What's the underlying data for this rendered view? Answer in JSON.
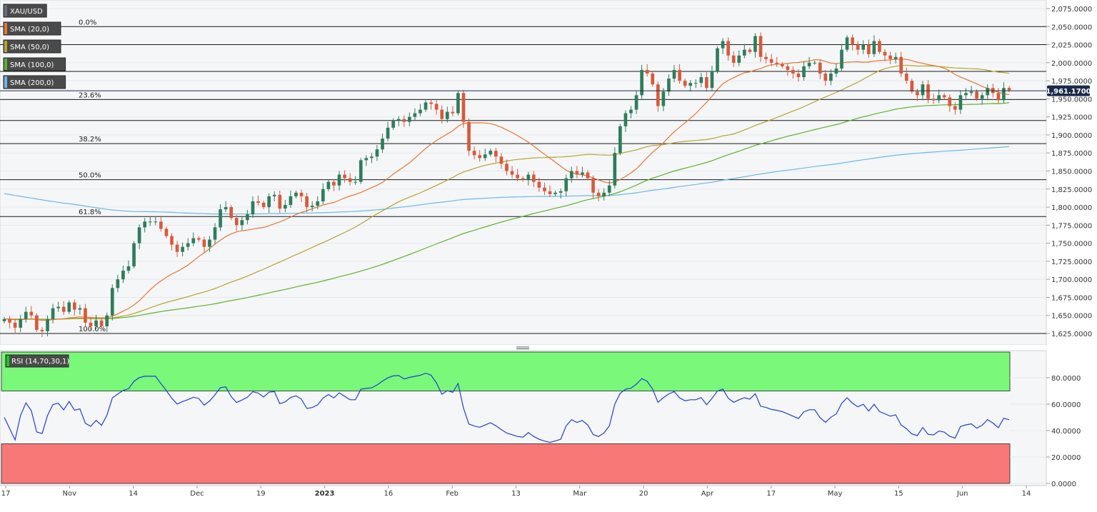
{
  "symbol": "XAU/USD",
  "current_price_label": "1,961.1700",
  "current_price": 1961.17,
  "colors": {
    "up": "#2e7d5b",
    "down": "#d9593a",
    "sma20": "#e8772e",
    "sma50": "#b8a32a",
    "sma100": "#5cb32a",
    "sma200": "#6bb8e8",
    "rsi_line": "#1f3fd6",
    "overbought_zone": "#79f879",
    "oversold_zone": "#f87878",
    "price_tag": "#1b2a4a"
  },
  "legend": [
    {
      "label": "XAU/USD",
      "swatch": "#607080"
    },
    {
      "label": "SMA (20,0)",
      "swatch": "#e8772e"
    },
    {
      "label": "SMA (50,0)",
      "swatch": "#b8a32a"
    },
    {
      "label": "SMA (100,0)",
      "swatch": "#5cb32a"
    },
    {
      "label": "SMA (200,0)",
      "swatch": "#6bb8e8"
    }
  ],
  "rsi_label": "RSI (14,70,30,1)",
  "chart_data": {
    "type": "candlestick",
    "x_labels": [
      "17",
      "Nov",
      "14",
      "Dec",
      "19",
      "2023",
      "16",
      "Feb",
      "13",
      "Mar",
      "20",
      "Apr",
      "17",
      "May",
      "15",
      "Jun",
      "14"
    ],
    "price_ticks": [
      "2,075.0000",
      "2,050.0000",
      "2,025.0000",
      "2,000.0000",
      "1,975.0000",
      "1,950.0000",
      "1,925.0000",
      "1,900.0000",
      "1,875.0000",
      "1,850.0000",
      "1,825.0000",
      "1,800.0000",
      "1,775.0000",
      "1,750.0000",
      "1,725.0000",
      "1,700.0000",
      "1,675.0000",
      "1,650.0000",
      "1,625.0000"
    ],
    "ylim": [
      1615,
      2080
    ],
    "fibonacci": [
      {
        "label": "0.0%",
        "price": 2050
      },
      {
        "label": "",
        "price": 2025
      },
      {
        "label": "",
        "price": 1988
      },
      {
        "label": "23.6%",
        "price": 1949
      },
      {
        "label": "",
        "price": 1920
      },
      {
        "label": "38.2%",
        "price": 1888
      },
      {
        "label": "50.0%",
        "price": 1838
      },
      {
        "label": "61.8%",
        "price": 1787
      },
      {
        "label": "100.0%",
        "price": 1625
      }
    ],
    "closes": [
      1645,
      1640,
      1633,
      1645,
      1655,
      1650,
      1630,
      1628,
      1645,
      1660,
      1662,
      1655,
      1668,
      1658,
      1660,
      1640,
      1635,
      1643,
      1635,
      1650,
      1688,
      1700,
      1712,
      1718,
      1750,
      1772,
      1780,
      1780,
      1780,
      1770,
      1760,
      1748,
      1738,
      1745,
      1750,
      1757,
      1755,
      1745,
      1755,
      1772,
      1797,
      1800,
      1785,
      1775,
      1782,
      1790,
      1808,
      1806,
      1800,
      1815,
      1817,
      1798,
      1803,
      1815,
      1820,
      1815,
      1800,
      1802,
      1808,
      1825,
      1835,
      1830,
      1845,
      1840,
      1835,
      1835,
      1865,
      1868,
      1870,
      1880,
      1895,
      1910,
      1920,
      1922,
      1918,
      1925,
      1930,
      1935,
      1945,
      1943,
      1935,
      1922,
      1932,
      1930,
      1958,
      1918,
      1878,
      1872,
      1868,
      1873,
      1878,
      1870,
      1860,
      1850,
      1845,
      1840,
      1838,
      1845,
      1835,
      1827,
      1822,
      1818,
      1820,
      1822,
      1840,
      1850,
      1845,
      1848,
      1840,
      1820,
      1815,
      1820,
      1830,
      1875,
      1912,
      1930,
      1935,
      1955,
      1990,
      1985,
      1970,
      1940,
      1960,
      1978,
      1990,
      1975,
      1968,
      1972,
      1972,
      1980,
      1965,
      1988,
      2020,
      2030,
      2010,
      2000,
      2010,
      2018,
      2015,
      2037,
      2008,
      2005,
      2000,
      1998,
      1995,
      1990,
      1985,
      1980,
      1995,
      2000,
      2000,
      1985,
      1975,
      1985,
      1992,
      2018,
      2035,
      2025,
      2018,
      2025,
      2012,
      2030,
      2015,
      2010,
      2005,
      2008,
      1985,
      1975,
      1960,
      1955,
      1970,
      1950,
      1948,
      1955,
      1952,
      1940,
      1935,
      1955,
      1958,
      1960,
      1950,
      1955,
      1965,
      1958,
      1948,
      1965,
      1962
    ]
  },
  "rsi_data": {
    "ticks": [
      "80.0000",
      "60.0000",
      "40.0000",
      "20.0000",
      "0.0000"
    ],
    "ylim": [
      0,
      100
    ],
    "overbought": 70,
    "oversold": 30
  }
}
